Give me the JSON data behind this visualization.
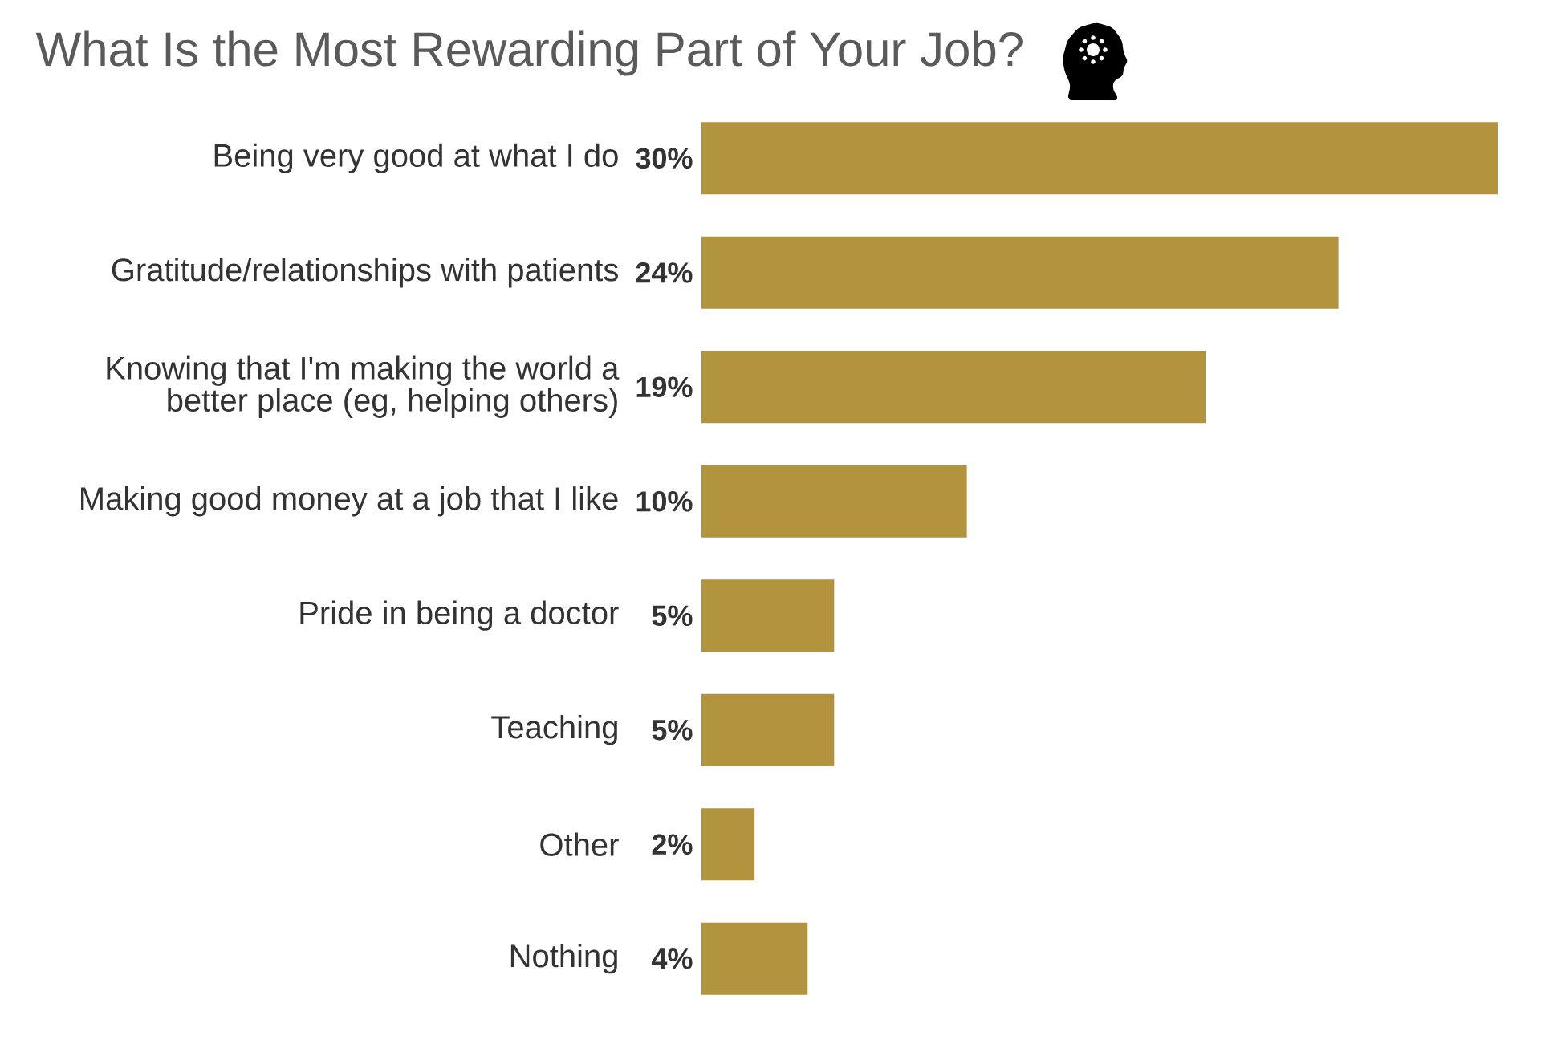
{
  "chart_data": {
    "type": "bar",
    "orientation": "horizontal",
    "title": "What Is the Most Rewarding Part of Your Job?",
    "categories": [
      "Being very good at what I do",
      "Gratitude/relationships with patients",
      "Knowing that I'm making the world a\nbetter place (eg, helping others)",
      "Making good money at a job that I like",
      "Pride in being a doctor",
      "Teaching",
      "Other",
      "Nothing"
    ],
    "values": [
      30,
      24,
      19,
      10,
      5,
      5,
      2,
      4
    ],
    "value_labels": [
      "30%",
      "24%",
      "19%",
      "10%",
      "5%",
      "5%",
      "2%",
      "4%"
    ],
    "color": "#b3943e",
    "xlim": [
      0,
      30
    ],
    "tick_labels": "y"
  }
}
